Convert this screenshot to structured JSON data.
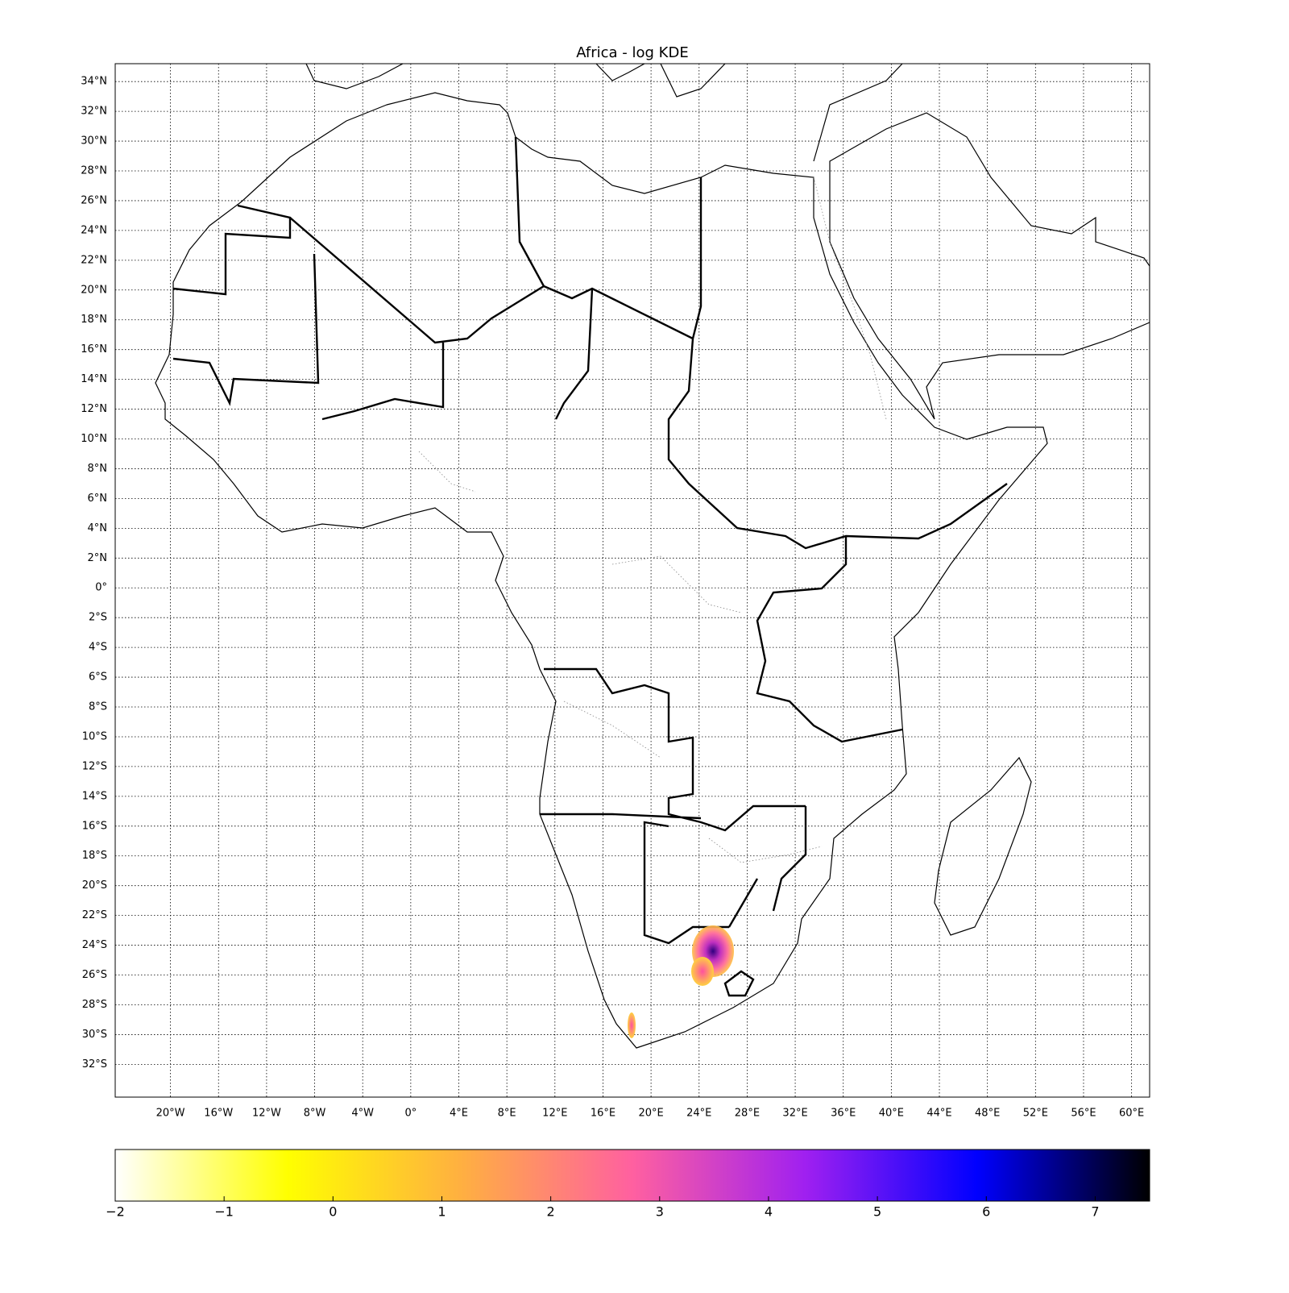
{
  "chart_data": {
    "type": "map",
    "title": "Africa - log KDE",
    "xlim": [
      -24.6,
      61.5
    ],
    "ylim": [
      -34.2,
      35.2
    ],
    "yticks": [
      {
        "value": 34,
        "label": "34°N"
      },
      {
        "value": 32,
        "label": "32°N"
      },
      {
        "value": 30,
        "label": "30°N"
      },
      {
        "value": 28,
        "label": "28°N"
      },
      {
        "value": 26,
        "label": "26°N"
      },
      {
        "value": 24,
        "label": "24°N"
      },
      {
        "value": 22,
        "label": "22°N"
      },
      {
        "value": 20,
        "label": "20°N"
      },
      {
        "value": 18,
        "label": "18°N"
      },
      {
        "value": 16,
        "label": "16°N"
      },
      {
        "value": 14,
        "label": "14°N"
      },
      {
        "value": 12,
        "label": "12°N"
      },
      {
        "value": 10,
        "label": "10°N"
      },
      {
        "value": 8,
        "label": "8°N"
      },
      {
        "value": 6,
        "label": "6°N"
      },
      {
        "value": 4,
        "label": "4°N"
      },
      {
        "value": 2,
        "label": "2°N"
      },
      {
        "value": 0,
        "label": "0°"
      },
      {
        "value": -2,
        "label": "2°S"
      },
      {
        "value": -4,
        "label": "4°S"
      },
      {
        "value": -6,
        "label": "6°S"
      },
      {
        "value": -8,
        "label": "8°S"
      },
      {
        "value": -10,
        "label": "10°S"
      },
      {
        "value": -12,
        "label": "12°S"
      },
      {
        "value": -14,
        "label": "14°S"
      },
      {
        "value": -16,
        "label": "16°S"
      },
      {
        "value": -18,
        "label": "18°S"
      },
      {
        "value": -20,
        "label": "20°S"
      },
      {
        "value": -22,
        "label": "22°S"
      },
      {
        "value": -24,
        "label": "24°S"
      },
      {
        "value": -26,
        "label": "26°S"
      },
      {
        "value": -28,
        "label": "28°S"
      },
      {
        "value": -30,
        "label": "30°S"
      },
      {
        "value": -32,
        "label": "32°S"
      }
    ],
    "xticks": [
      {
        "value": -20,
        "label": "20°W"
      },
      {
        "value": -16,
        "label": "16°W"
      },
      {
        "value": -12,
        "label": "12°W"
      },
      {
        "value": -8,
        "label": "8°W"
      },
      {
        "value": -4,
        "label": "4°W"
      },
      {
        "value": 0,
        "label": "0°"
      },
      {
        "value": 4,
        "label": "4°E"
      },
      {
        "value": 8,
        "label": "8°E"
      },
      {
        "value": 12,
        "label": "12°E"
      },
      {
        "value": 16,
        "label": "16°E"
      },
      {
        "value": 20,
        "label": "20°E"
      },
      {
        "value": 24,
        "label": "24°E"
      },
      {
        "value": 28,
        "label": "28°E"
      },
      {
        "value": 32,
        "label": "32°E"
      },
      {
        "value": 36,
        "label": "36°E"
      },
      {
        "value": 40,
        "label": "40°E"
      },
      {
        "value": 44,
        "label": "44°E"
      },
      {
        "value": 48,
        "label": "48°E"
      },
      {
        "value": 52,
        "label": "52°E"
      },
      {
        "value": 56,
        "label": "56°E"
      },
      {
        "value": 60,
        "label": "60°E"
      }
    ],
    "grid": true,
    "colorbar": {
      "lim": [
        -2,
        7.5
      ],
      "ticks": [
        {
          "value": -2,
          "label": "−2"
        },
        {
          "value": -1,
          "label": "−1"
        },
        0,
        1,
        2,
        3,
        4,
        5,
        6,
        7
      ],
      "colors": [
        "#ffffff",
        "#ffff00",
        "#ffb040",
        "#ff60a0",
        "#a020f0",
        "#0000ff",
        "#000000"
      ]
    }
  }
}
